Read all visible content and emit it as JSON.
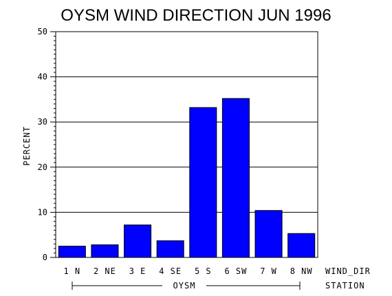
{
  "chart_data": {
    "type": "bar",
    "title": "OYSM WIND DIRECTION JUN 1996",
    "ylabel": "PERCENT",
    "xlabel": "WIND_DIR",
    "group_label": "OYSM",
    "group_axis_label": "STATION",
    "categories": [
      "1 N",
      "2 NE",
      "3 E",
      "4 SE",
      "5 S",
      "6 SW",
      "7 W",
      "8 NW"
    ],
    "values": [
      2.5,
      2.8,
      7.2,
      3.7,
      33.2,
      35.2,
      10.4,
      5.3
    ],
    "ylim": [
      0,
      50
    ],
    "yticks": [
      "0",
      "10",
      "20",
      "30",
      "40",
      "50"
    ],
    "grid": true,
    "bar_color": "#0000ff"
  }
}
